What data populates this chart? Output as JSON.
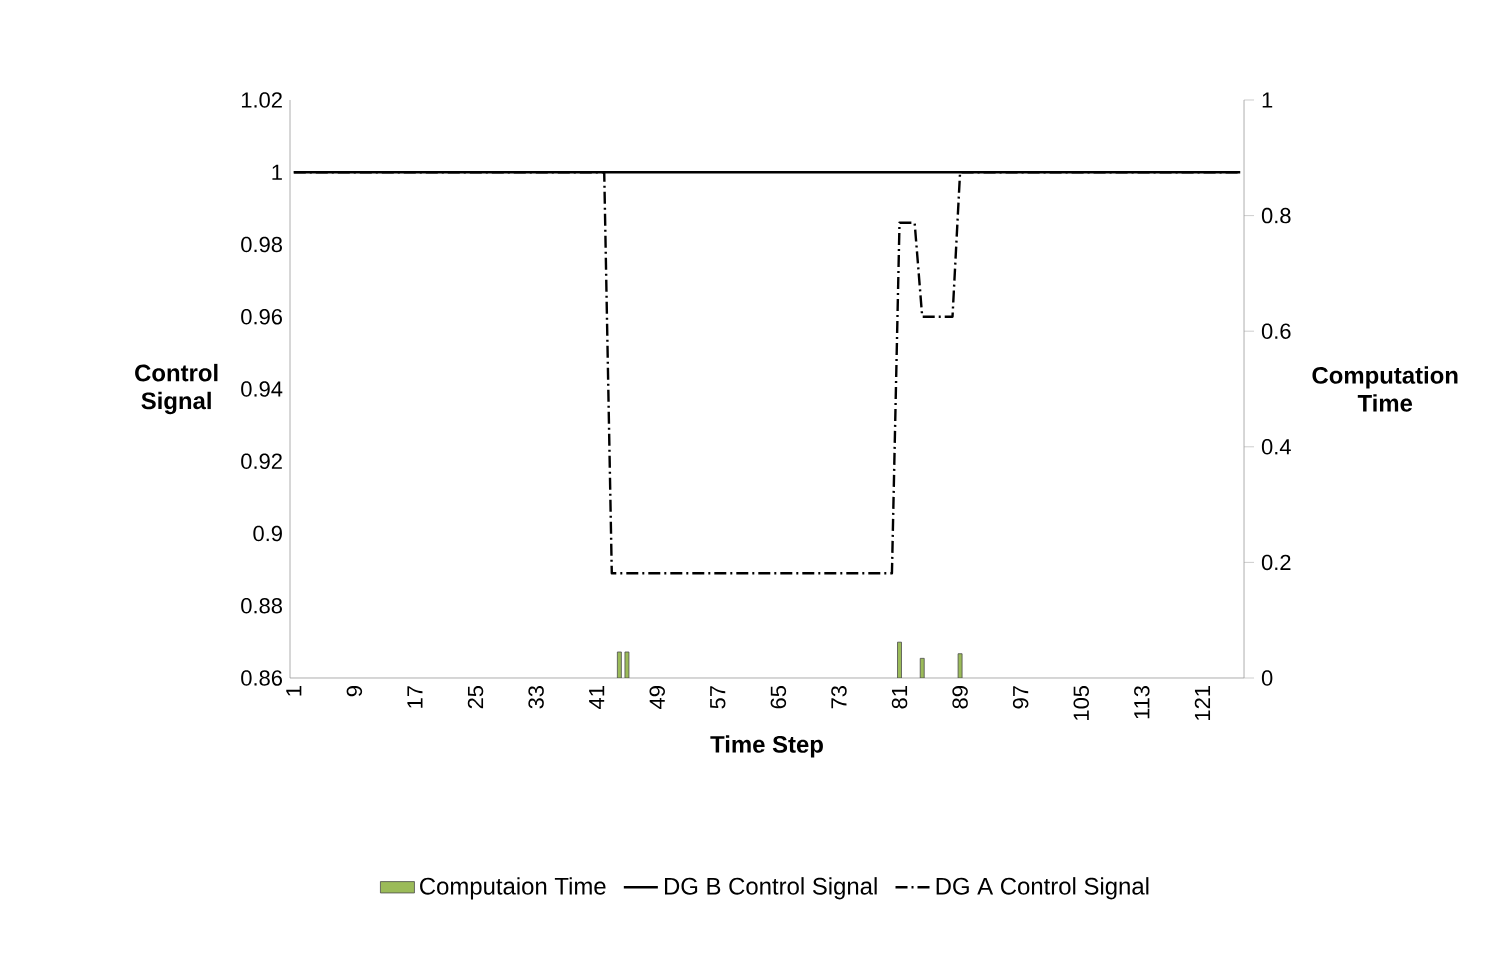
{
  "chart_data": {
    "type": "line",
    "xlabel": "Time Step",
    "ylabel": "Control Signal",
    "y2label": "Computation Time",
    "categories": [
      "1",
      null,
      null,
      null,
      null,
      null,
      null,
      null,
      "9",
      null,
      null,
      null,
      null,
      null,
      null,
      null,
      "17",
      null,
      null,
      null,
      null,
      null,
      null,
      null,
      "25",
      null,
      null,
      null,
      null,
      null,
      null,
      null,
      "33",
      null,
      null,
      null,
      null,
      null,
      null,
      null,
      "41",
      null,
      null,
      null,
      null,
      null,
      null,
      null,
      "49",
      null,
      null,
      null,
      null,
      null,
      null,
      null,
      "57",
      null,
      null,
      null,
      null,
      null,
      null,
      null,
      "65",
      null,
      null,
      null,
      null,
      null,
      null,
      null,
      "73",
      null,
      null,
      null,
      null,
      null,
      null,
      null,
      "81",
      null,
      null,
      null,
      null,
      null,
      null,
      null,
      "89",
      null,
      null,
      null,
      null,
      null,
      null,
      null,
      "97",
      null,
      null,
      null,
      null,
      null,
      null,
      null,
      "105",
      null,
      null,
      null,
      null,
      null,
      null,
      null,
      "113",
      null,
      null,
      null,
      null,
      null,
      null,
      null,
      "121",
      null,
      null,
      null,
      null,
      null
    ],
    "ylim": [
      0.86,
      1.02
    ],
    "yticks": [
      0.86,
      0.88,
      0.9,
      0.92,
      0.94,
      0.96,
      0.98,
      1,
      1.02
    ],
    "y2lim": [
      0,
      1
    ],
    "y2ticks": [
      0,
      0.2,
      0.4,
      0.6,
      0.8,
      1
    ],
    "legend": "bottom",
    "series": [
      {
        "name": "Computaion Time",
        "type": "bar",
        "axis": "y2",
        "color": "#9bbb59",
        "values": [
          null,
          null,
          null,
          null,
          null,
          null,
          null,
          null,
          null,
          null,
          null,
          null,
          null,
          null,
          null,
          null,
          null,
          null,
          null,
          null,
          null,
          null,
          null,
          null,
          null,
          null,
          null,
          null,
          null,
          null,
          null,
          null,
          null,
          null,
          null,
          null,
          null,
          null,
          null,
          null,
          null,
          null,
          null,
          0.045,
          0.045,
          null,
          null,
          null,
          null,
          null,
          null,
          null,
          null,
          null,
          null,
          null,
          null,
          null,
          null,
          null,
          null,
          null,
          null,
          null,
          null,
          null,
          null,
          null,
          null,
          null,
          null,
          null,
          null,
          null,
          null,
          null,
          null,
          null,
          null,
          null,
          0.062,
          null,
          null,
          0.034,
          null,
          null,
          null,
          null,
          0.042,
          null,
          null,
          null,
          null,
          null,
          null,
          null,
          null,
          null,
          null,
          null,
          null,
          null,
          null,
          null,
          null,
          null,
          null,
          null,
          null,
          null,
          null,
          null,
          null,
          null,
          null,
          null,
          null,
          null,
          null,
          null,
          null,
          null,
          null,
          null,
          null,
          null
        ]
      },
      {
        "name": "DG B Control Signal",
        "color": "#000000",
        "line_style": "solid",
        "values": [
          1,
          1,
          1,
          1,
          1,
          1,
          1,
          1,
          1,
          1,
          1,
          1,
          1,
          1,
          1,
          1,
          1,
          1,
          1,
          1,
          1,
          1,
          1,
          1,
          1,
          1,
          1,
          1,
          1,
          1,
          1,
          1,
          1,
          1,
          1,
          1,
          1,
          1,
          1,
          1,
          1,
          1,
          1,
          1,
          1,
          1,
          1,
          1,
          1,
          1,
          1,
          1,
          1,
          1,
          1,
          1,
          1,
          1,
          1,
          1,
          1,
          1,
          1,
          1,
          1,
          1,
          1,
          1,
          1,
          1,
          1,
          1,
          1,
          1,
          1,
          1,
          1,
          1,
          1,
          1,
          1,
          1,
          1,
          1,
          1,
          1,
          1,
          1,
          1,
          1,
          1,
          1,
          1,
          1,
          1,
          1,
          1,
          1,
          1,
          1,
          1,
          1,
          1,
          1,
          1,
          1,
          1,
          1,
          1,
          1,
          1,
          1,
          1,
          1,
          1,
          1,
          1,
          1,
          1,
          1,
          1,
          1,
          1,
          1,
          1,
          1
        ]
      },
      {
        "name": "DG A Control Signal",
        "color": "#000000",
        "line_style": "dashdot",
        "values": [
          1,
          1,
          1,
          1,
          1,
          1,
          1,
          1,
          1,
          1,
          1,
          1,
          1,
          1,
          1,
          1,
          1,
          1,
          1,
          1,
          1,
          1,
          1,
          1,
          1,
          1,
          1,
          1,
          1,
          1,
          1,
          1,
          1,
          1,
          1,
          1,
          1,
          1,
          1,
          1,
          1,
          1,
          0.889,
          0.889,
          0.889,
          0.889,
          0.889,
          0.889,
          0.889,
          0.889,
          0.889,
          0.889,
          0.889,
          0.889,
          0.889,
          0.889,
          0.889,
          0.889,
          0.889,
          0.889,
          0.889,
          0.889,
          0.889,
          0.889,
          0.889,
          0.889,
          0.889,
          0.889,
          0.889,
          0.889,
          0.889,
          0.889,
          0.889,
          0.889,
          0.889,
          0.889,
          0.889,
          0.889,
          0.889,
          0.889,
          0.986,
          0.986,
          0.986,
          0.96,
          0.96,
          0.96,
          0.96,
          0.96,
          1,
          1,
          1,
          1,
          1,
          1,
          1,
          1,
          1,
          1,
          1,
          1,
          1,
          1,
          1,
          1,
          1,
          1,
          1,
          1,
          1,
          1,
          1,
          1,
          1,
          1,
          1,
          1,
          1,
          1,
          1,
          1,
          1,
          1,
          1,
          1,
          1,
          1
        ]
      }
    ]
  }
}
